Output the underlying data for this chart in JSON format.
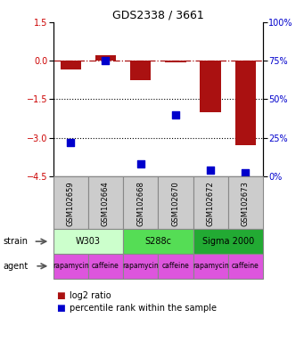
{
  "title": "GDS2338 / 3661",
  "samples": [
    "GSM102659",
    "GSM102664",
    "GSM102668",
    "GSM102670",
    "GSM102672",
    "GSM102673"
  ],
  "log2_ratio": [
    -0.35,
    0.2,
    -0.75,
    -0.05,
    -2.0,
    -3.3
  ],
  "percentile_rank": [
    22,
    75,
    8,
    40,
    4,
    2
  ],
  "ylim_left": [
    -4.5,
    1.5
  ],
  "ylim_right": [
    0,
    100
  ],
  "yticks_left": [
    1.5,
    0,
    -1.5,
    -3,
    -4.5
  ],
  "yticks_right": [
    100,
    75,
    50,
    25,
    0
  ],
  "hlines_dotted": [
    -1.5,
    -3
  ],
  "hline_dashdot": 0,
  "bar_color": "#aa1111",
  "dot_color": "#0000cc",
  "bar_width": 0.6,
  "dot_size": 40,
  "strain_groups": [
    {
      "label": "W303",
      "cols": [
        0,
        1
      ],
      "color": "#ccffcc"
    },
    {
      "label": "S288c",
      "cols": [
        2,
        3
      ],
      "color": "#55dd55"
    },
    {
      "label": "Sigma 2000",
      "cols": [
        4,
        5
      ],
      "color": "#22aa33"
    }
  ],
  "agent_labels": [
    "rapamycin",
    "caffeine",
    "rapamycin",
    "caffeine",
    "rapamycin",
    "caffeine"
  ],
  "agent_color": "#dd55dd",
  "legend_red_label": "log2 ratio",
  "legend_blue_label": "percentile rank within the sample",
  "left_axis_color": "#cc0000",
  "right_axis_color": "#0000cc",
  "label_fontsize": 7,
  "tick_fontsize": 7,
  "title_fontsize": 9,
  "sample_label_fontsize": 6,
  "agent_fontsize": 5.5,
  "strain_fontsize": 7
}
